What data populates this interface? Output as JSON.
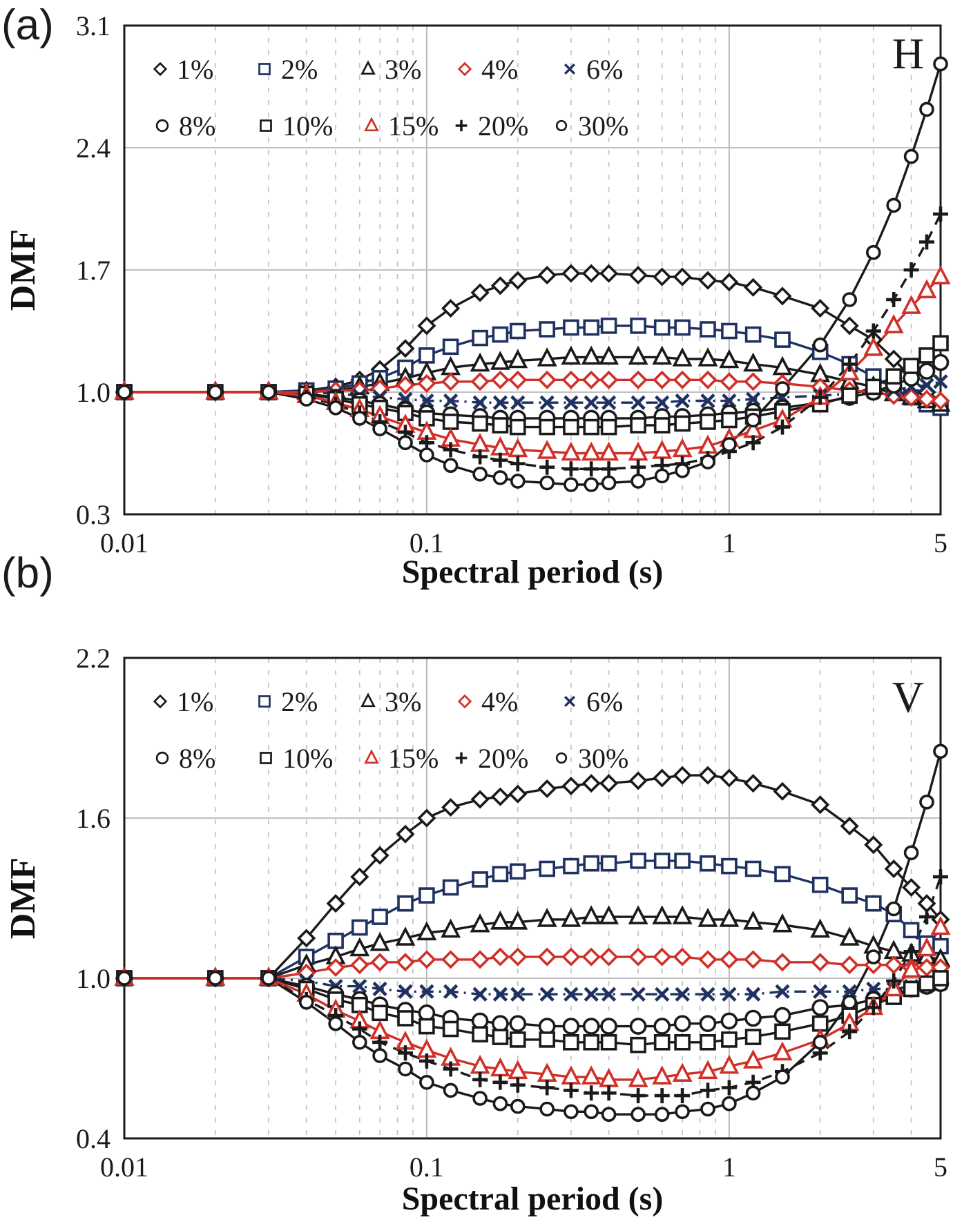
{
  "figure": {
    "background": "#ffffff",
    "palette": {
      "black": "#1a1a1a",
      "navy": "#1f3160",
      "red": "#d03028",
      "grid_minor": "#c4c4c4",
      "grid_major": "#b8b8b8"
    }
  },
  "chart_data": [
    {
      "type": "line",
      "panel_label": "(a)",
      "corner_label": "H",
      "xlabel": "Spectral period (s)",
      "ylabel": "DMF",
      "xscale": "log",
      "xlim": [
        0.01,
        5
      ],
      "ylim": [
        0.3,
        3.1
      ],
      "xticks": [
        {
          "v": 0.01,
          "label": "0.01"
        },
        {
          "v": 0.1,
          "label": "0.1"
        },
        {
          "v": 1,
          "label": "1"
        },
        {
          "v": 5,
          "label": "5"
        }
      ],
      "yticks": [
        {
          "v": 0.3,
          "label": "0.3"
        },
        {
          "v": 1.0,
          "label": "1.0"
        },
        {
          "v": 1.7,
          "label": "1.7"
        },
        {
          "v": 2.4,
          "label": "2.4"
        },
        {
          "v": 3.1,
          "label": "3.1"
        }
      ],
      "grid_major_x": [
        0.1,
        1
      ],
      "legend_rows": [
        [
          "1%",
          "2%",
          "3%",
          "4%",
          "6%"
        ],
        [
          "8%",
          "10%",
          "15%",
          "20%",
          "30%"
        ]
      ],
      "periods": [
        0.01,
        0.02,
        0.03,
        0.04,
        0.05,
        0.06,
        0.07,
        0.085,
        0.1,
        0.12,
        0.15,
        0.175,
        0.2,
        0.25,
        0.3,
        0.35,
        0.4,
        0.5,
        0.6,
        0.7,
        0.85,
        1,
        1.2,
        1.5,
        2,
        2.5,
        3,
        3.5,
        4,
        4.5,
        5
      ],
      "series": [
        {
          "label": "1%",
          "marker": "diamond",
          "color": "#1a1a1a",
          "line": "solid",
          "values": [
            1.0,
            1.0,
            1.0,
            1.01,
            1.03,
            1.07,
            1.13,
            1.25,
            1.38,
            1.48,
            1.57,
            1.61,
            1.64,
            1.67,
            1.68,
            1.68,
            1.68,
            1.67,
            1.66,
            1.66,
            1.64,
            1.63,
            1.6,
            1.55,
            1.48,
            1.38,
            1.3,
            1.19,
            1.08,
            1.0,
            0.95
          ]
        },
        {
          "label": "2%",
          "marker": "square",
          "color": "#1f3160",
          "line": "solid",
          "values": [
            1.0,
            1.0,
            1.0,
            1.01,
            1.02,
            1.05,
            1.08,
            1.14,
            1.21,
            1.26,
            1.31,
            1.33,
            1.35,
            1.36,
            1.37,
            1.37,
            1.38,
            1.38,
            1.37,
            1.37,
            1.36,
            1.35,
            1.33,
            1.3,
            1.23,
            1.16,
            1.09,
            1.02,
            0.97,
            0.93,
            0.91
          ]
        },
        {
          "label": "3%",
          "marker": "triangle",
          "color": "#1a1a1a",
          "line": "solid",
          "values": [
            1.0,
            1.0,
            1.0,
            1.0,
            1.01,
            1.03,
            1.05,
            1.08,
            1.11,
            1.14,
            1.16,
            1.17,
            1.18,
            1.19,
            1.2,
            1.2,
            1.2,
            1.2,
            1.2,
            1.19,
            1.19,
            1.18,
            1.16,
            1.14,
            1.1,
            1.06,
            1.03,
            0.99,
            0.97,
            0.95,
            0.93
          ]
        },
        {
          "label": "4%",
          "marker": "diamond",
          "color": "#d03028",
          "line": "solid",
          "values": [
            1.0,
            1.0,
            1.0,
            1.0,
            1.01,
            1.01,
            1.02,
            1.04,
            1.05,
            1.06,
            1.06,
            1.07,
            1.07,
            1.07,
            1.07,
            1.07,
            1.07,
            1.07,
            1.07,
            1.07,
            1.07,
            1.06,
            1.06,
            1.05,
            1.03,
            1.01,
            1.0,
            0.98,
            0.97,
            0.96,
            0.95
          ]
        },
        {
          "label": "6%",
          "marker": "x",
          "color": "#1f3160",
          "line": "dashdot",
          "values": [
            1.0,
            1.0,
            1.0,
            1.0,
            0.99,
            0.98,
            0.97,
            0.96,
            0.95,
            0.95,
            0.94,
            0.94,
            0.94,
            0.94,
            0.94,
            0.94,
            0.94,
            0.94,
            0.94,
            0.95,
            0.95,
            0.95,
            0.96,
            0.97,
            0.98,
            0.99,
            1.0,
            1.01,
            1.03,
            1.04,
            1.06
          ]
        },
        {
          "label": "8%",
          "marker": "circle",
          "color": "#1a1a1a",
          "line": "solid",
          "values": [
            1.0,
            1.0,
            1.0,
            0.99,
            0.97,
            0.95,
            0.93,
            0.9,
            0.88,
            0.87,
            0.86,
            0.85,
            0.85,
            0.85,
            0.85,
            0.85,
            0.85,
            0.85,
            0.86,
            0.86,
            0.87,
            0.88,
            0.89,
            0.91,
            0.94,
            0.97,
            1.0,
            1.04,
            1.08,
            1.12,
            1.17
          ]
        },
        {
          "label": "10%",
          "marker": "square",
          "color": "#1a1a1a",
          "line": "solid",
          "values": [
            1.0,
            1.0,
            1.0,
            0.99,
            0.96,
            0.93,
            0.91,
            0.88,
            0.85,
            0.83,
            0.82,
            0.81,
            0.8,
            0.8,
            0.8,
            0.8,
            0.8,
            0.81,
            0.81,
            0.82,
            0.83,
            0.84,
            0.86,
            0.89,
            0.93,
            0.98,
            1.03,
            1.09,
            1.15,
            1.21,
            1.28
          ]
        },
        {
          "label": "15%",
          "marker": "triangle",
          "color": "#d03028",
          "line": "solid",
          "values": [
            1.0,
            1.0,
            1.0,
            0.98,
            0.94,
            0.9,
            0.86,
            0.81,
            0.77,
            0.73,
            0.7,
            0.68,
            0.67,
            0.66,
            0.65,
            0.65,
            0.65,
            0.65,
            0.66,
            0.67,
            0.69,
            0.73,
            0.78,
            0.84,
            0.97,
            1.11,
            1.25,
            1.38,
            1.49,
            1.58,
            1.66
          ]
        },
        {
          "label": "20%",
          "marker": "plus",
          "color": "#1a1a1a",
          "line": "dashed",
          "values": [
            1.0,
            1.0,
            1.0,
            0.97,
            0.93,
            0.88,
            0.83,
            0.77,
            0.71,
            0.67,
            0.63,
            0.61,
            0.59,
            0.57,
            0.56,
            0.56,
            0.56,
            0.57,
            0.58,
            0.59,
            0.62,
            0.66,
            0.71,
            0.8,
            0.97,
            1.16,
            1.35,
            1.53,
            1.7,
            1.86,
            2.02
          ]
        },
        {
          "label": "30%",
          "marker": "circle-sm",
          "color": "#1a1a1a",
          "line": "solid",
          "values": [
            1.0,
            1.0,
            1.0,
            0.96,
            0.91,
            0.85,
            0.79,
            0.71,
            0.64,
            0.58,
            0.53,
            0.51,
            0.49,
            0.48,
            0.47,
            0.47,
            0.48,
            0.49,
            0.52,
            0.55,
            0.6,
            0.7,
            0.84,
            1.02,
            1.27,
            1.53,
            1.8,
            2.07,
            2.35,
            2.62,
            2.88
          ]
        }
      ]
    },
    {
      "type": "line",
      "panel_label": "(b)",
      "corner_label": "V",
      "xlabel": "Spectral period (s)",
      "ylabel": "DMF",
      "xscale": "log",
      "xlim": [
        0.01,
        5
      ],
      "ylim": [
        0.4,
        2.2
      ],
      "xticks": [
        {
          "v": 0.01,
          "label": "0.01"
        },
        {
          "v": 0.1,
          "label": "0.1"
        },
        {
          "v": 1,
          "label": "1"
        },
        {
          "v": 5,
          "label": "5"
        }
      ],
      "yticks": [
        {
          "v": 0.4,
          "label": "0.4"
        },
        {
          "v": 1.0,
          "label": "1.0"
        },
        {
          "v": 1.6,
          "label": "1.6"
        },
        {
          "v": 2.2,
          "label": "2.2"
        }
      ],
      "grid_major_x": [
        0.1,
        1
      ],
      "legend_rows": [
        [
          "1%",
          "2%",
          "3%",
          "4%",
          "6%"
        ],
        [
          "8%",
          "10%",
          "15%",
          "20%",
          "30%"
        ]
      ],
      "periods": [
        0.01,
        0.02,
        0.03,
        0.04,
        0.05,
        0.06,
        0.07,
        0.085,
        0.1,
        0.12,
        0.15,
        0.175,
        0.2,
        0.25,
        0.3,
        0.35,
        0.4,
        0.5,
        0.6,
        0.7,
        0.85,
        1,
        1.2,
        1.5,
        2,
        2.5,
        3,
        3.5,
        4,
        4.5,
        5
      ],
      "series": [
        {
          "label": "1%",
          "marker": "diamond",
          "color": "#1a1a1a",
          "line": "solid",
          "values": [
            1.0,
            1.0,
            1.0,
            1.15,
            1.28,
            1.38,
            1.46,
            1.54,
            1.6,
            1.64,
            1.67,
            1.68,
            1.69,
            1.71,
            1.72,
            1.73,
            1.73,
            1.74,
            1.75,
            1.76,
            1.76,
            1.75,
            1.73,
            1.7,
            1.65,
            1.57,
            1.5,
            1.41,
            1.34,
            1.28,
            1.22
          ]
        },
        {
          "label": "2%",
          "marker": "square",
          "color": "#1f3160",
          "line": "solid",
          "values": [
            1.0,
            1.0,
            1.0,
            1.08,
            1.14,
            1.19,
            1.23,
            1.28,
            1.31,
            1.34,
            1.37,
            1.39,
            1.4,
            1.41,
            1.42,
            1.43,
            1.43,
            1.44,
            1.44,
            1.44,
            1.43,
            1.42,
            1.41,
            1.39,
            1.35,
            1.31,
            1.28,
            1.24,
            1.18,
            1.13,
            1.12
          ]
        },
        {
          "label": "3%",
          "marker": "triangle",
          "color": "#1a1a1a",
          "line": "solid",
          "values": [
            1.0,
            1.0,
            1.0,
            1.05,
            1.08,
            1.11,
            1.13,
            1.15,
            1.17,
            1.18,
            1.2,
            1.21,
            1.21,
            1.22,
            1.22,
            1.23,
            1.23,
            1.23,
            1.23,
            1.23,
            1.22,
            1.22,
            1.21,
            1.2,
            1.18,
            1.15,
            1.12,
            1.1,
            1.09,
            1.08,
            1.07
          ]
        },
        {
          "label": "4%",
          "marker": "diamond",
          "color": "#d03028",
          "line": "solid",
          "values": [
            1.0,
            1.0,
            1.0,
            1.02,
            1.04,
            1.05,
            1.06,
            1.06,
            1.07,
            1.07,
            1.07,
            1.08,
            1.08,
            1.08,
            1.08,
            1.08,
            1.08,
            1.08,
            1.08,
            1.08,
            1.07,
            1.07,
            1.07,
            1.06,
            1.06,
            1.05,
            1.05,
            1.05,
            1.04,
            1.04,
            1.04
          ]
        },
        {
          "label": "6%",
          "marker": "x",
          "color": "#1f3160",
          "line": "dashdot",
          "values": [
            1.0,
            1.0,
            1.0,
            0.99,
            0.97,
            0.97,
            0.96,
            0.95,
            0.95,
            0.95,
            0.94,
            0.94,
            0.94,
            0.94,
            0.94,
            0.94,
            0.94,
            0.94,
            0.94,
            0.94,
            0.94,
            0.94,
            0.94,
            0.95,
            0.95,
            0.95,
            0.96,
            0.96,
            0.97,
            0.97,
            0.98
          ]
        },
        {
          "label": "8%",
          "marker": "circle",
          "color": "#1a1a1a",
          "line": "solid",
          "values": [
            1.0,
            1.0,
            1.0,
            0.97,
            0.94,
            0.92,
            0.9,
            0.88,
            0.87,
            0.85,
            0.84,
            0.83,
            0.83,
            0.82,
            0.82,
            0.82,
            0.82,
            0.82,
            0.82,
            0.83,
            0.83,
            0.84,
            0.85,
            0.86,
            0.89,
            0.9,
            0.92,
            0.94,
            0.96,
            0.97,
            0.98
          ]
        },
        {
          "label": "10%",
          "marker": "square",
          "color": "#1a1a1a",
          "line": "solid",
          "values": [
            1.0,
            1.0,
            1.0,
            0.96,
            0.92,
            0.9,
            0.87,
            0.85,
            0.82,
            0.81,
            0.79,
            0.78,
            0.77,
            0.77,
            0.76,
            0.76,
            0.76,
            0.75,
            0.76,
            0.76,
            0.76,
            0.77,
            0.78,
            0.8,
            0.83,
            0.86,
            0.9,
            0.93,
            0.96,
            0.98,
            1.0
          ]
        },
        {
          "label": "15%",
          "marker": "triangle",
          "color": "#d03028",
          "line": "solid",
          "values": [
            1.0,
            1.0,
            1.0,
            0.94,
            0.88,
            0.84,
            0.8,
            0.76,
            0.73,
            0.7,
            0.67,
            0.66,
            0.65,
            0.64,
            0.63,
            0.63,
            0.62,
            0.62,
            0.63,
            0.64,
            0.65,
            0.67,
            0.69,
            0.72,
            0.77,
            0.83,
            0.89,
            0.96,
            1.03,
            1.11,
            1.19
          ]
        },
        {
          "label": "20%",
          "marker": "plus",
          "color": "#1a1a1a",
          "line": "dashed",
          "values": [
            1.0,
            1.0,
            1.0,
            0.92,
            0.86,
            0.81,
            0.76,
            0.72,
            0.69,
            0.66,
            0.62,
            0.61,
            0.6,
            0.59,
            0.58,
            0.57,
            0.57,
            0.56,
            0.56,
            0.56,
            0.58,
            0.59,
            0.61,
            0.65,
            0.72,
            0.8,
            0.89,
            0.99,
            1.1,
            1.23,
            1.38
          ]
        },
        {
          "label": "30%",
          "marker": "circle-sm",
          "color": "#1a1a1a",
          "line": "solid",
          "values": [
            1.0,
            1.0,
            1.0,
            0.91,
            0.83,
            0.76,
            0.71,
            0.66,
            0.61,
            0.58,
            0.55,
            0.53,
            0.52,
            0.51,
            0.5,
            0.5,
            0.49,
            0.49,
            0.49,
            0.5,
            0.51,
            0.53,
            0.57,
            0.63,
            0.76,
            0.91,
            1.08,
            1.26,
            1.47,
            1.66,
            1.85
          ]
        }
      ]
    }
  ]
}
